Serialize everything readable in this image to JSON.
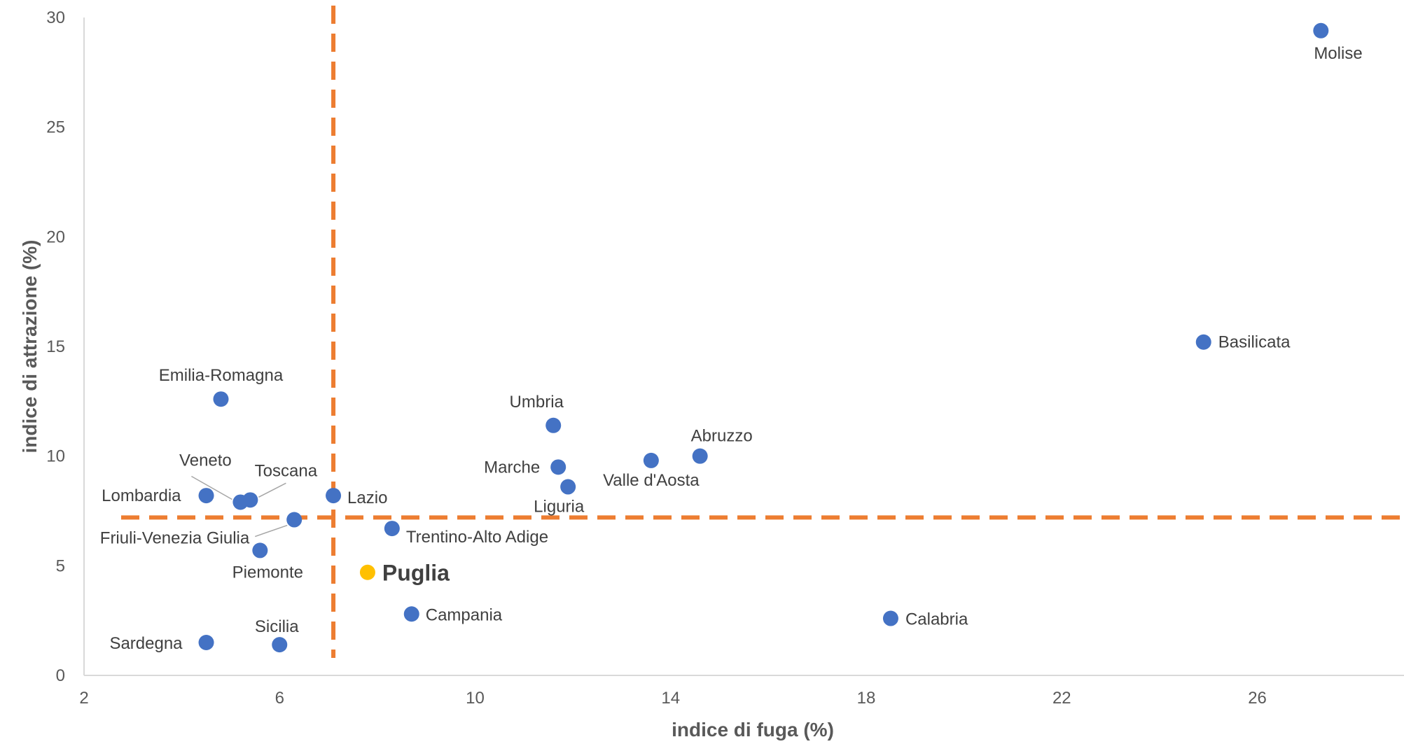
{
  "chart_data": {
    "type": "scatter",
    "xlabel": "indice di fuga (%)",
    "ylabel": "indice di attrazione (%)",
    "xlim": [
      2,
      29
    ],
    "ylim": [
      0,
      30
    ],
    "xticks": [
      2,
      6,
      10,
      14,
      18,
      22,
      26
    ],
    "yticks": [
      0,
      5,
      10,
      15,
      20,
      25,
      30
    ],
    "grid": false,
    "reference_lines": {
      "x": 7.1,
      "y": 7.2,
      "color": "#ED7D31"
    },
    "colors": {
      "point": "#4472C4",
      "highlight": "#FFC000",
      "reference": "#ED7D31",
      "axis": "#D9D9D9"
    },
    "points": [
      {
        "name": "Molise",
        "x": 27.3,
        "y": 29.4
      },
      {
        "name": "Basilicata",
        "x": 24.9,
        "y": 15.2
      },
      {
        "name": "Emilia-Romagna",
        "x": 4.8,
        "y": 12.6
      },
      {
        "name": "Umbria",
        "x": 11.6,
        "y": 11.4
      },
      {
        "name": "Abruzzo",
        "x": 14.6,
        "y": 10.0
      },
      {
        "name": "Valle d'Aosta",
        "x": 13.6,
        "y": 9.8
      },
      {
        "name": "Marche",
        "x": 11.7,
        "y": 9.5
      },
      {
        "name": "Liguria",
        "x": 11.9,
        "y": 8.6
      },
      {
        "name": "Lombardia",
        "x": 4.5,
        "y": 8.2
      },
      {
        "name": "Veneto",
        "x": 5.2,
        "y": 7.9
      },
      {
        "name": "Toscana",
        "x": 5.4,
        "y": 8.0
      },
      {
        "name": "Lazio",
        "x": 7.1,
        "y": 8.2
      },
      {
        "name": "Friuli-Venezia Giulia",
        "x": 6.3,
        "y": 7.1
      },
      {
        "name": "Trentino-Alto Adige",
        "x": 8.3,
        "y": 6.7
      },
      {
        "name": "Piemonte",
        "x": 5.6,
        "y": 5.7
      },
      {
        "name": "Puglia",
        "x": 7.8,
        "y": 4.7,
        "highlight": true
      },
      {
        "name": "Campania",
        "x": 8.7,
        "y": 2.8
      },
      {
        "name": "Calabria",
        "x": 18.5,
        "y": 2.6
      },
      {
        "name": "Sardegna",
        "x": 4.5,
        "y": 1.5
      },
      {
        "name": "Sicilia",
        "x": 6.0,
        "y": 1.4
      }
    ]
  }
}
